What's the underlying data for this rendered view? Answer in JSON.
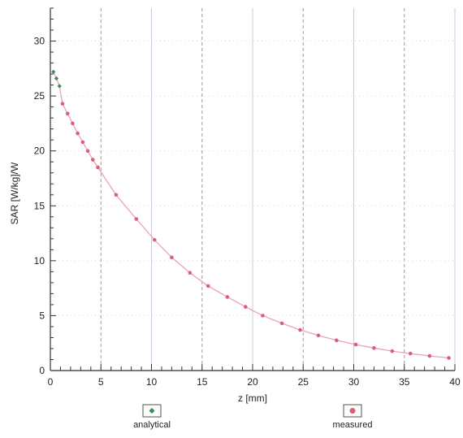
{
  "chart_data": {
    "type": "line",
    "title": "",
    "xlabel": "z [mm]",
    "ylabel": "SAR [W/kg]/W",
    "xlim": [
      0,
      40
    ],
    "ylim": [
      0,
      33
    ],
    "x_ticks": [
      0,
      5,
      10,
      15,
      20,
      25,
      30,
      35,
      40
    ],
    "y_ticks": [
      0,
      5,
      10,
      15,
      20,
      25,
      30
    ],
    "grid": true,
    "legend_position": "bottom",
    "colors": {
      "analytical": "#3a8a5a",
      "measured": "#d9607a",
      "curve": "#e9a4b4",
      "axis": "#333333",
      "grid_dashed": "#9a9a9a",
      "grid_solid": "#c8c8e4"
    },
    "series": [
      {
        "name": "analytical",
        "x": [
          0.3,
          0.6,
          0.9
        ],
        "y": [
          27.2,
          26.6,
          25.9
        ]
      },
      {
        "name": "measured",
        "x": [
          1.2,
          1.7,
          2.2,
          2.7,
          3.2,
          3.7,
          4.2,
          4.7,
          6.5,
          8.5,
          10.3,
          12.0,
          13.8,
          15.6,
          17.5,
          19.3,
          21.0,
          22.9,
          24.7,
          26.5,
          28.3,
          30.2,
          32.0,
          33.8,
          35.6,
          37.5,
          39.4
        ],
        "y": [
          24.3,
          23.4,
          22.5,
          21.6,
          20.8,
          20.0,
          19.2,
          18.5,
          16.0,
          13.8,
          11.9,
          10.3,
          8.9,
          7.7,
          6.7,
          5.8,
          5.0,
          4.3,
          3.7,
          3.2,
          2.75,
          2.37,
          2.05,
          1.77,
          1.55,
          1.33,
          1.15
        ]
      }
    ]
  }
}
